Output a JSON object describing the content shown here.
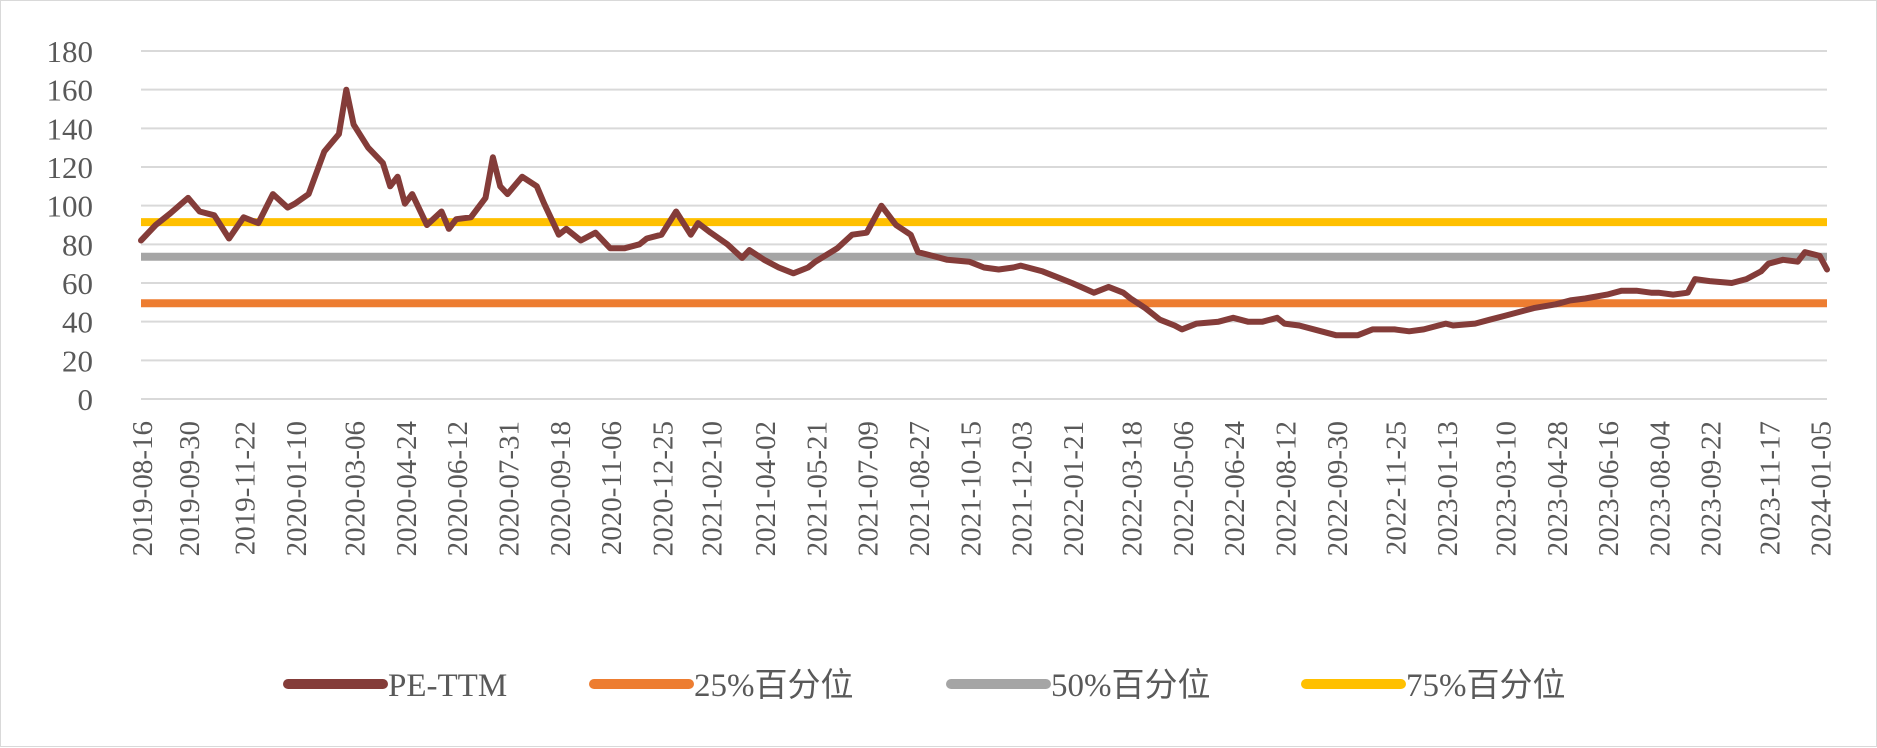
{
  "chart_data": {
    "type": "line",
    "title": "",
    "xlabel": "",
    "ylabel": "",
    "ylim": [
      0,
      180
    ],
    "yticks": [
      0,
      20,
      40,
      60,
      80,
      100,
      120,
      140,
      160,
      180
    ],
    "grid": true,
    "legend_position": "bottom",
    "x_start": "2019-08-16",
    "x_end": "2024-01-12",
    "x_tick_labels": [
      "2019-08-16",
      "2019-09-30",
      "2019-11-22",
      "2020-01-10",
      "2020-03-06",
      "2020-04-24",
      "2020-06-12",
      "2020-07-31",
      "2020-09-18",
      "2020-11-06",
      "2020-12-25",
      "2021-02-10",
      "2021-04-02",
      "2021-05-21",
      "2021-07-09",
      "2021-08-27",
      "2021-10-15",
      "2021-12-03",
      "2022-01-21",
      "2022-03-18",
      "2022-05-06",
      "2022-06-24",
      "2022-08-12",
      "2022-09-30",
      "2022-11-25",
      "2023-01-13",
      "2023-03-10",
      "2023-04-28",
      "2023-06-16",
      "2023-08-04",
      "2023-09-22",
      "2023-11-17",
      "2024-01-05"
    ],
    "series": [
      {
        "name": "PE-TTM",
        "color": "#843c39",
        "points": [
          [
            "2019-08-16",
            82
          ],
          [
            "2019-08-30",
            90
          ],
          [
            "2019-09-13",
            96
          ],
          [
            "2019-09-30",
            104
          ],
          [
            "2019-10-11",
            97
          ],
          [
            "2019-10-25",
            95
          ],
          [
            "2019-11-08",
            83
          ],
          [
            "2019-11-22",
            94
          ],
          [
            "2019-12-06",
            91
          ],
          [
            "2019-12-20",
            106
          ],
          [
            "2020-01-03",
            99
          ],
          [
            "2020-01-10",
            101
          ],
          [
            "2020-01-23",
            106
          ],
          [
            "2020-02-07",
            128
          ],
          [
            "2020-02-21",
            137
          ],
          [
            "2020-02-28",
            160
          ],
          [
            "2020-03-06",
            142
          ],
          [
            "2020-03-20",
            130
          ],
          [
            "2020-04-03",
            122
          ],
          [
            "2020-04-10",
            110
          ],
          [
            "2020-04-17",
            115
          ],
          [
            "2020-04-24",
            101
          ],
          [
            "2020-05-01",
            106
          ],
          [
            "2020-05-15",
            90
          ],
          [
            "2020-05-29",
            97
          ],
          [
            "2020-06-05",
            88
          ],
          [
            "2020-06-12",
            93
          ],
          [
            "2020-06-26",
            94
          ],
          [
            "2020-07-10",
            104
          ],
          [
            "2020-07-17",
            125
          ],
          [
            "2020-07-24",
            110
          ],
          [
            "2020-07-31",
            106
          ],
          [
            "2020-08-14",
            115
          ],
          [
            "2020-08-28",
            110
          ],
          [
            "2020-09-04",
            101
          ],
          [
            "2020-09-18",
            85
          ],
          [
            "2020-09-25",
            88
          ],
          [
            "2020-10-09",
            82
          ],
          [
            "2020-10-23",
            86
          ],
          [
            "2020-11-06",
            78
          ],
          [
            "2020-11-20",
            78
          ],
          [
            "2020-12-04",
            80
          ],
          [
            "2020-12-11",
            83
          ],
          [
            "2020-12-25",
            85
          ],
          [
            "2021-01-08",
            97
          ],
          [
            "2021-01-22",
            85
          ],
          [
            "2021-01-29",
            91
          ],
          [
            "2021-02-10",
            86
          ],
          [
            "2021-02-26",
            80
          ],
          [
            "2021-03-12",
            73
          ],
          [
            "2021-03-19",
            77
          ],
          [
            "2021-04-02",
            72
          ],
          [
            "2021-04-16",
            68
          ],
          [
            "2021-04-30",
            65
          ],
          [
            "2021-05-14",
            68
          ],
          [
            "2021-05-21",
            71
          ],
          [
            "2021-06-11",
            78
          ],
          [
            "2021-06-25",
            85
          ],
          [
            "2021-07-09",
            86
          ],
          [
            "2021-07-23",
            100
          ],
          [
            "2021-08-06",
            90
          ],
          [
            "2021-08-20",
            85
          ],
          [
            "2021-08-27",
            76
          ],
          [
            "2021-09-10",
            74
          ],
          [
            "2021-09-24",
            72
          ],
          [
            "2021-10-15",
            71
          ],
          [
            "2021-10-29",
            68
          ],
          [
            "2021-11-12",
            67
          ],
          [
            "2021-11-26",
            68
          ],
          [
            "2021-12-03",
            69
          ],
          [
            "2021-12-24",
            66
          ],
          [
            "2022-01-07",
            63
          ],
          [
            "2022-01-21",
            60
          ],
          [
            "2022-02-11",
            55
          ],
          [
            "2022-02-25",
            58
          ],
          [
            "2022-03-11",
            55
          ],
          [
            "2022-03-18",
            52
          ],
          [
            "2022-04-01",
            47
          ],
          [
            "2022-04-15",
            41
          ],
          [
            "2022-04-29",
            38
          ],
          [
            "2022-05-06",
            36
          ],
          [
            "2022-05-20",
            39
          ],
          [
            "2022-06-10",
            40
          ],
          [
            "2022-06-24",
            42
          ],
          [
            "2022-07-08",
            40
          ],
          [
            "2022-07-22",
            40
          ],
          [
            "2022-08-05",
            42
          ],
          [
            "2022-08-12",
            39
          ],
          [
            "2022-08-26",
            38
          ],
          [
            "2022-09-16",
            35
          ],
          [
            "2022-09-30",
            33
          ],
          [
            "2022-10-21",
            33
          ],
          [
            "2022-11-04",
            36
          ],
          [
            "2022-11-25",
            36
          ],
          [
            "2022-12-09",
            35
          ],
          [
            "2022-12-23",
            36
          ],
          [
            "2023-01-06",
            38
          ],
          [
            "2023-01-13",
            39
          ],
          [
            "2023-01-20",
            38
          ],
          [
            "2023-02-10",
            39
          ],
          [
            "2023-02-24",
            41
          ],
          [
            "2023-03-10",
            43
          ],
          [
            "2023-03-24",
            45
          ],
          [
            "2023-04-07",
            47
          ],
          [
            "2023-04-28",
            49
          ],
          [
            "2023-05-12",
            51
          ],
          [
            "2023-05-26",
            52
          ],
          [
            "2023-06-16",
            54
          ],
          [
            "2023-06-30",
            56
          ],
          [
            "2023-07-14",
            56
          ],
          [
            "2023-07-28",
            55
          ],
          [
            "2023-08-04",
            55
          ],
          [
            "2023-08-18",
            54
          ],
          [
            "2023-09-01",
            55
          ],
          [
            "2023-09-08",
            62
          ],
          [
            "2023-09-22",
            61
          ],
          [
            "2023-10-13",
            60
          ],
          [
            "2023-10-27",
            62
          ],
          [
            "2023-11-10",
            66
          ],
          [
            "2023-11-17",
            70
          ],
          [
            "2023-12-01",
            72
          ],
          [
            "2023-12-15",
            71
          ],
          [
            "2023-12-22",
            76
          ],
          [
            "2024-01-05",
            74
          ],
          [
            "2024-01-12",
            67
          ]
        ]
      },
      {
        "name": "25%百分位",
        "color": "#ed7d31",
        "constant": 49.5
      },
      {
        "name": "50%百分位",
        "color": "#a5a5a5",
        "constant": 73.6
      },
      {
        "name": "75%百分位",
        "color": "#ffc000",
        "constant": 91.5
      }
    ]
  }
}
